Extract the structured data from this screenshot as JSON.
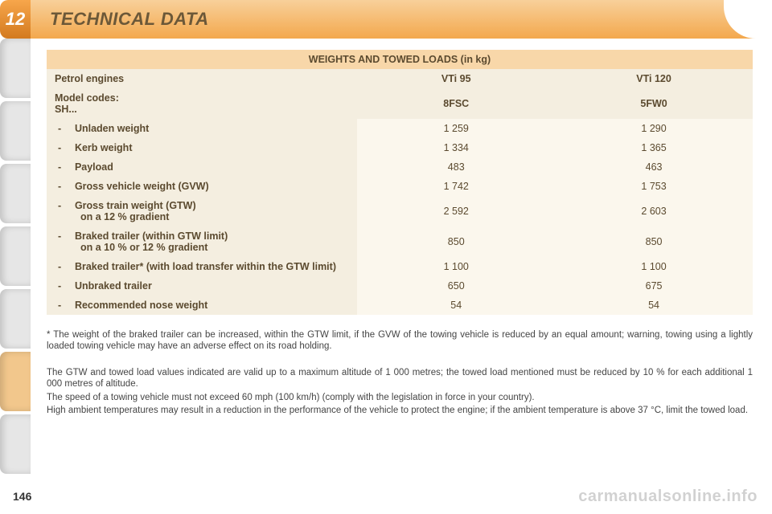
{
  "page": {
    "section_number": "12",
    "section_title": "TECHNICAL DATA",
    "page_number": "146",
    "watermark": "carmanualsonline.info"
  },
  "colors": {
    "header_gradient_top": "#f8d09a",
    "header_gradient_bottom": "#f3a84d",
    "badge_gradient_top": "#f7a64b",
    "badge_gradient_bottom": "#d37a1f",
    "title_band": "#f8d7a9",
    "header_row": "#f4eee0",
    "data_cell": "#fbf7ed",
    "text": "#5b4a2f",
    "side_tab": "#dcddde"
  },
  "table": {
    "type": "table",
    "title": "WEIGHTS AND TOWED LOADS (in kg)",
    "column_widths_pct": [
      44,
      28,
      28
    ],
    "header_rows": [
      {
        "label": "Petrol engines",
        "c1": "VTi 95",
        "c2": "VTi 120"
      },
      {
        "label": "Model codes:\nSH...",
        "c1": "8FSC",
        "c2": "5FW0"
      }
    ],
    "rows": [
      {
        "label": "Unladen weight",
        "c1": "1 259",
        "c2": "1 290"
      },
      {
        "label": "Kerb weight",
        "c1": "1 334",
        "c2": "1 365"
      },
      {
        "label": "Payload",
        "c1": "483",
        "c2": "463"
      },
      {
        "label": "Gross vehicle weight (GVW)",
        "c1": "1 742",
        "c2": "1 753"
      },
      {
        "label": "Gross train weight (GTW)",
        "sub": "on a 12 % gradient",
        "c1": "2 592",
        "c2": "2 603"
      },
      {
        "label": "Braked trailer (within GTW limit)",
        "sub": "on a 10 % or 12 % gradient",
        "c1": "850",
        "c2": "850"
      },
      {
        "label": "Braked trailer* (with load transfer within the GTW limit)",
        "c1": "1 100",
        "c2": "1 100"
      },
      {
        "label": "Unbraked trailer",
        "c1": "650",
        "c2": "675"
      },
      {
        "label": "Recommended nose weight",
        "c1": "54",
        "c2": "54"
      }
    ]
  },
  "footnote": "*  The weight of the braked trailer can be increased, within the GTW limit, if the GVW of the towing vehicle is reduced by an equal amount; warning, towing using a lightly loaded towing vehicle may have an adverse effect on its road holding.",
  "notes": [
    "The GTW and towed load values indicated are valid up to a maximum altitude of 1 000 metres; the towed load mentioned must be reduced by 10 % for each additional 1 000 metres of altitude.",
    "The speed of a towing vehicle must not exceed 60 mph (100 km/h) (comply with the legislation in force in your country).",
    "High ambient temperatures may result in a reduction in the performance of the vehicle to protect the engine; if the ambient temperature is above 37 °C, limit the towed load."
  ]
}
